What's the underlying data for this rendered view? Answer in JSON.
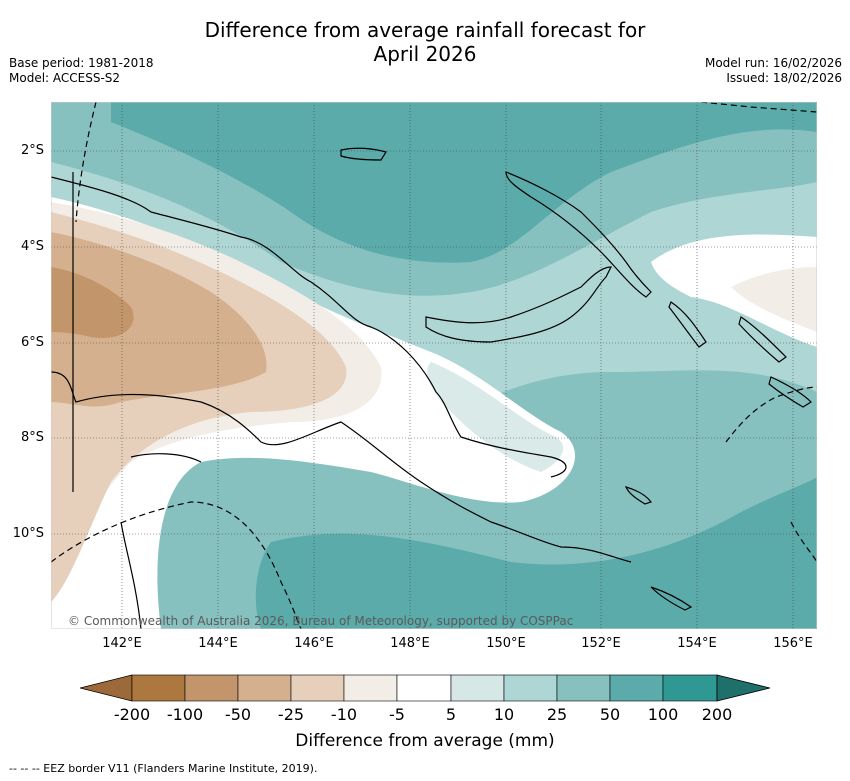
{
  "title_line1": "Difference from average rainfall forecast for",
  "title_line2": "April 2026",
  "base_period": "Base period: 1981-2018",
  "model": "Model: ACCESS-S2",
  "model_run": "Model run: 16/02/2026",
  "issued": "Issued: 18/02/2026",
  "credit": "© Commonwealth of Australia 2026, Bureau of Meteorology, supported by COSPPac",
  "lat_labels": [
    "2°S",
    "4°S",
    "6°S",
    "8°S",
    "10°S"
  ],
  "lon_labels": [
    "142°E",
    "144°E",
    "146°E",
    "148°E",
    "150°E",
    "152°E",
    "154°E",
    "156°E"
  ],
  "colorbar": {
    "label": "Difference from average (mm)",
    "ticks": [
      "-200",
      "-100",
      "-50",
      "-25",
      "-10",
      "-5",
      "5",
      "10",
      "25",
      "50",
      "100",
      "200"
    ],
    "colors": [
      "#9c6a3a",
      "#ad7840",
      "#c3956a",
      "#d4b08e",
      "#e6d0bb",
      "#f2ede6",
      "#ffffff",
      "#d6e8e6",
      "#aed6d4",
      "#86c0bf",
      "#5aabaa",
      "#2f9893",
      "#1f6f6b"
    ]
  },
  "footnote": "-- -- -- EEZ border V11 (Flanders Marine Institute, 2019).",
  "icons": [
    "rain-anomaly-map"
  ]
}
